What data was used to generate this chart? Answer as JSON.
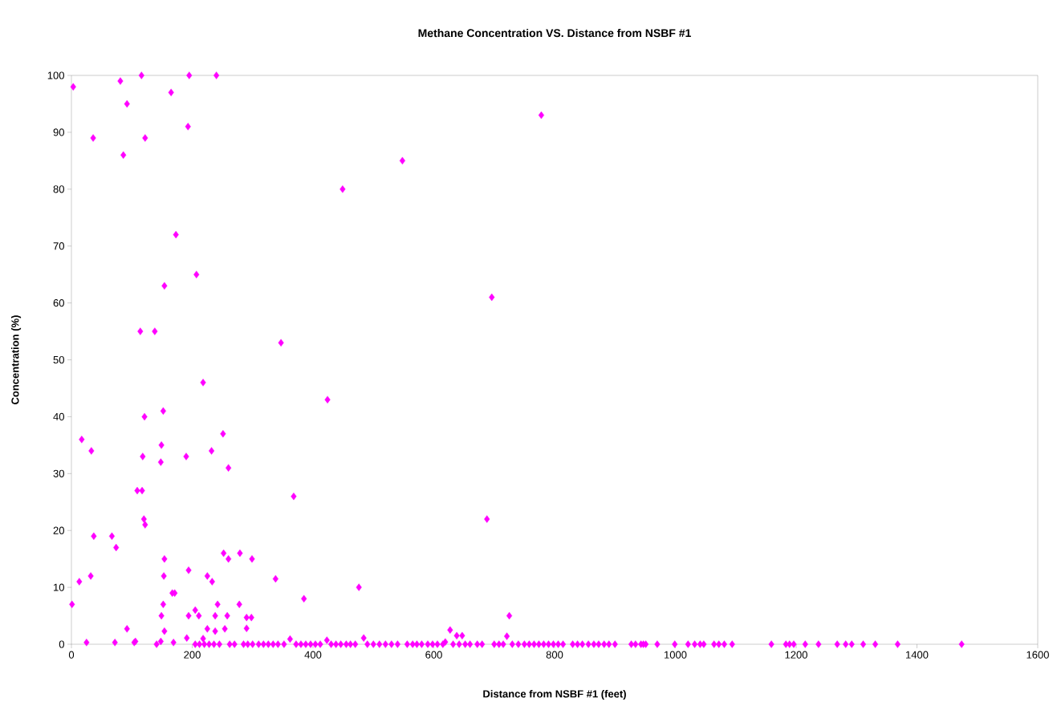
{
  "chart_data": {
    "type": "scatter",
    "title": "Methane Concentration VS. Distance from NSBF #1",
    "xlabel": "Distance from NSBF #1 (feet)",
    "ylabel": "Concentration (%)",
    "color": "#ff00ff",
    "marker": "diamond",
    "xlim": [
      0,
      1600
    ],
    "ylim": [
      0,
      100
    ],
    "xticks": [
      0,
      200,
      400,
      600,
      800,
      1000,
      1200,
      1400,
      1600
    ],
    "yticks": [
      0,
      10,
      20,
      30,
      40,
      50,
      60,
      70,
      80,
      90,
      100
    ],
    "x": [
      3,
      81,
      116,
      195,
      240,
      92,
      165,
      193,
      36,
      122,
      86,
      173,
      207,
      154,
      114,
      138,
      218,
      121,
      152,
      17,
      33,
      118,
      149,
      148,
      190,
      251,
      232,
      260,
      109,
      117,
      120,
      122,
      37,
      67,
      74,
      252,
      260,
      279,
      299,
      154,
      194,
      153,
      225,
      233,
      13,
      32,
      167,
      171,
      1,
      152,
      242,
      278,
      149,
      194,
      205,
      211,
      238,
      258,
      290,
      298,
      92,
      154,
      225,
      238,
      254,
      290,
      191,
      25,
      72,
      104,
      106,
      141,
      148,
      169,
      218,
      778,
      548,
      449,
      696,
      347,
      424,
      368,
      688,
      338,
      385,
      476,
      725,
      721,
      627,
      638,
      647,
      362,
      423,
      484,
      619,
      205,
      212,
      220,
      228,
      236,
      245,
      262,
      270,
      285,
      292,
      300,
      310,
      318,
      326,
      334,
      342,
      352,
      372,
      380,
      388,
      396,
      404,
      412,
      430,
      438,
      446,
      455,
      462,
      470,
      490,
      500,
      510,
      520,
      530,
      540,
      556,
      565,
      572,
      580,
      590,
      598,
      606,
      615,
      632,
      642,
      652,
      660,
      672,
      680,
      700,
      708,
      715,
      730,
      740,
      750,
      758,
      766,
      774,
      782,
      790,
      798,
      806,
      814,
      830,
      838,
      846,
      856,
      865,
      873,
      882,
      890,
      900,
      927,
      934,
      943,
      947,
      951,
      970,
      999,
      1021,
      1032,
      1041,
      1047,
      1064,
      1072,
      1081,
      1094,
      1159,
      1183,
      1189,
      1196,
      1215,
      1237,
      1268,
      1282,
      1292,
      1311,
      1331,
      1368,
      1474
    ],
    "values": [
      98,
      99,
      100,
      100,
      100,
      95,
      97,
      91,
      89,
      89,
      86,
      72,
      65,
      63,
      55,
      55,
      46,
      40,
      41,
      36,
      34,
      33,
      35,
      32,
      33,
      37,
      34,
      31,
      27,
      27,
      22,
      21,
      19,
      19,
      17,
      16,
      15,
      16,
      15,
      15,
      13,
      12,
      12,
      11,
      11,
      12,
      9,
      9,
      7,
      7,
      7,
      7,
      5,
      5,
      6,
      5,
      5,
      5,
      4.7,
      4.7,
      2.7,
      2.3,
      2.7,
      2.3,
      2.7,
      2.8,
      1.1,
      0.3,
      0.3,
      0.3,
      0.5,
      0,
      0.5,
      0.3,
      1,
      93,
      85,
      80,
      61,
      53,
      43,
      26,
      22,
      11.5,
      8,
      10,
      5,
      1.4,
      2.5,
      1.5,
      1.5,
      0.9,
      0.7,
      1.1,
      0.4,
      0,
      0,
      0,
      0,
      0,
      0,
      0,
      0,
      0,
      0,
      0,
      0,
      0,
      0,
      0,
      0,
      0,
      0,
      0,
      0,
      0,
      0,
      0,
      0,
      0,
      0,
      0,
      0,
      0,
      0,
      0,
      0,
      0,
      0,
      0,
      0,
      0,
      0,
      0,
      0,
      0,
      0,
      0,
      0,
      0,
      0,
      0,
      0,
      0,
      0,
      0,
      0,
      0,
      0,
      0,
      0,
      0,
      0,
      0,
      0,
      0,
      0,
      0,
      0,
      0,
      0,
      0,
      0,
      0,
      0,
      0,
      0,
      0,
      0,
      0,
      0,
      0,
      0,
      0,
      0,
      0,
      0,
      0,
      0,
      0,
      0,
      0,
      0,
      0,
      0,
      0,
      0,
      0,
      0,
      0,
      0,
      0,
      0,
      0,
      0
    ]
  }
}
